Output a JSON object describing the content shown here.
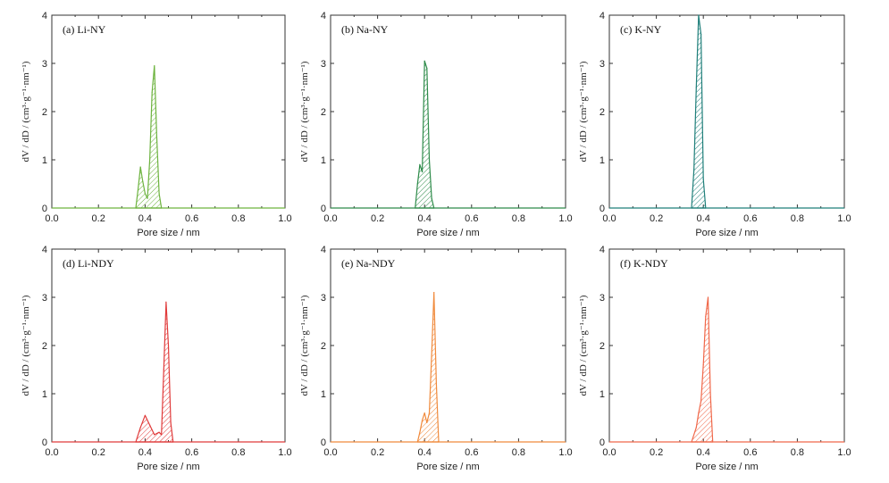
{
  "chart_data": [
    {
      "type": "area",
      "title": "(a) Li-NY",
      "xlabel": "Pore size / nm",
      "ylabel": "dV / dD / (cm³·g⁻¹·nm⁻¹)",
      "xlim": [
        0,
        1.0
      ],
      "ylim": [
        0,
        4
      ],
      "x_ticks": [
        "0.0",
        "0.2",
        "0.4",
        "0.6",
        "0.8",
        "1.0"
      ],
      "y_ticks": [
        "0",
        "1",
        "2",
        "3",
        "4"
      ],
      "color": "#6db33f",
      "series": [
        {
          "x": [
            0.36,
            0.37,
            0.38,
            0.39,
            0.4,
            0.41,
            0.42,
            0.43,
            0.44,
            0.45,
            0.46,
            0.47
          ],
          "y": [
            0,
            0.4,
            0.85,
            0.55,
            0.3,
            0.2,
            1.0,
            2.4,
            2.95,
            1.5,
            0.3,
            0
          ]
        }
      ]
    },
    {
      "type": "area",
      "title": "(b) Na-NY",
      "xlabel": "Pore size / nm",
      "ylabel": "dV / dD / (cm³·g⁻¹·nm⁻¹)",
      "xlim": [
        0,
        1.0
      ],
      "ylim": [
        0,
        4
      ],
      "x_ticks": [
        "0.0",
        "0.2",
        "0.4",
        "0.6",
        "0.8",
        "1.0"
      ],
      "y_ticks": [
        "0",
        "1",
        "2",
        "3",
        "4"
      ],
      "color": "#2e8b4a",
      "series": [
        {
          "x": [
            0.36,
            0.37,
            0.38,
            0.39,
            0.4,
            0.41,
            0.42,
            0.43,
            0.44
          ],
          "y": [
            0,
            0.5,
            0.9,
            0.75,
            3.05,
            2.9,
            1.0,
            0.2,
            0
          ]
        }
      ]
    },
    {
      "type": "area",
      "title": "(c) K-NY",
      "xlabel": "Pore size / nm",
      "ylabel": "dV / dD / (cm³·g⁻¹·nm⁻¹)",
      "xlim": [
        0,
        1.0
      ],
      "ylim": [
        0,
        4
      ],
      "x_ticks": [
        "0.0",
        "0.2",
        "0.4",
        "0.6",
        "0.8",
        "1.0"
      ],
      "y_ticks": [
        "0",
        "1",
        "2",
        "3",
        "4"
      ],
      "color": "#1f7f7a",
      "series": [
        {
          "x": [
            0.35,
            0.36,
            0.37,
            0.38,
            0.39,
            0.4,
            0.41
          ],
          "y": [
            0,
            0.8,
            2.5,
            4.0,
            3.6,
            0.6,
            0
          ]
        }
      ]
    },
    {
      "type": "area",
      "title": "(d) Li-NDY",
      "xlabel": "Pore size / nm",
      "ylabel": "dV / dD / (cm³·g⁻¹·nm⁻¹)",
      "xlim": [
        0,
        1.0
      ],
      "ylim": [
        0,
        4
      ],
      "x_ticks": [
        "0.0",
        "0.2",
        "0.4",
        "0.6",
        "0.8",
        "1.0"
      ],
      "y_ticks": [
        "0",
        "1",
        "2",
        "3",
        "4"
      ],
      "color": "#e03a3a",
      "series": [
        {
          "x": [
            0.36,
            0.38,
            0.4,
            0.42,
            0.44,
            0.46,
            0.47,
            0.48,
            0.49,
            0.5,
            0.51,
            0.52
          ],
          "y": [
            0,
            0.3,
            0.55,
            0.35,
            0.15,
            0.2,
            0.15,
            1.5,
            2.9,
            2.0,
            0.4,
            0
          ]
        }
      ]
    },
    {
      "type": "area",
      "title": "(e) Na-NDY",
      "xlabel": "Pore size / nm",
      "ylabel": "dV / dD / (cm³·g⁻¹·nm⁻¹)",
      "xlim": [
        0,
        1.0
      ],
      "ylim": [
        0,
        4
      ],
      "x_ticks": [
        "0.0",
        "0.2",
        "0.4",
        "0.6",
        "0.8",
        "1.0"
      ],
      "y_ticks": [
        "0",
        "1",
        "2",
        "3",
        "4"
      ],
      "color": "#f08a3c",
      "series": [
        {
          "x": [
            0.37,
            0.38,
            0.39,
            0.4,
            0.41,
            0.42,
            0.43,
            0.44,
            0.45,
            0.46
          ],
          "y": [
            0,
            0.2,
            0.45,
            0.6,
            0.4,
            0.6,
            1.8,
            3.1,
            1.2,
            0
          ]
        }
      ]
    },
    {
      "type": "area",
      "title": "(f) K-NDY",
      "xlabel": "Pore size / nm",
      "ylabel": "dV / dD / (cm³·g⁻¹·nm⁻¹)",
      "xlim": [
        0,
        1.0
      ],
      "ylim": [
        0,
        4
      ],
      "x_ticks": [
        "0.0",
        "0.2",
        "0.4",
        "0.6",
        "0.8",
        "1.0"
      ],
      "y_ticks": [
        "0",
        "1",
        "2",
        "3",
        "4"
      ],
      "color": "#f0684a",
      "series": [
        {
          "x": [
            0.35,
            0.37,
            0.38,
            0.39,
            0.4,
            0.41,
            0.42,
            0.43,
            0.44
          ],
          "y": [
            0,
            0.3,
            0.6,
            0.85,
            1.6,
            2.6,
            3.0,
            1.0,
            0
          ]
        }
      ]
    }
  ]
}
